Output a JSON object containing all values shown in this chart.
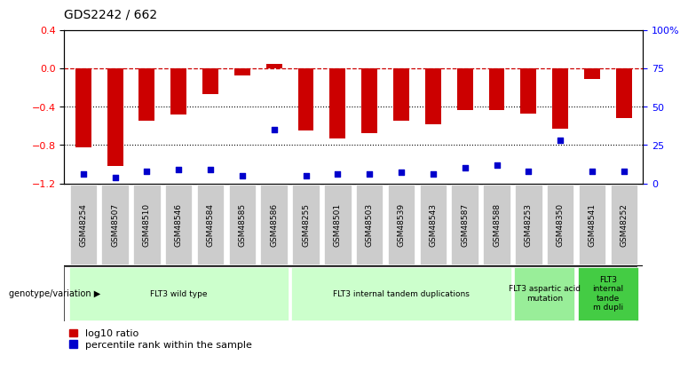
{
  "title": "GDS2242 / 662",
  "samples": [
    "GSM48254",
    "GSM48507",
    "GSM48510",
    "GSM48546",
    "GSM48584",
    "GSM48585",
    "GSM48586",
    "GSM48255",
    "GSM48501",
    "GSM48503",
    "GSM48539",
    "GSM48543",
    "GSM48587",
    "GSM48588",
    "GSM48253",
    "GSM48350",
    "GSM48541",
    "GSM48252"
  ],
  "log10_ratio": [
    -0.82,
    -1.02,
    -0.55,
    -0.48,
    -0.27,
    -0.07,
    0.05,
    -0.65,
    -0.73,
    -0.68,
    -0.55,
    -0.58,
    -0.43,
    -0.43,
    -0.47,
    -0.63,
    -0.11,
    -0.52
  ],
  "percentile_rank": [
    6,
    4,
    8,
    9,
    9,
    5,
    35,
    5,
    6,
    6,
    7,
    6,
    10,
    12,
    8,
    28,
    8,
    8
  ],
  "groups": [
    {
      "label": "FLT3 wild type",
      "start": 0,
      "end": 6,
      "color": "#ccffcc"
    },
    {
      "label": "FLT3 internal tandem duplications",
      "start": 7,
      "end": 13,
      "color": "#ccffcc"
    },
    {
      "label": "FLT3 aspartic acid\nmutation",
      "start": 14,
      "end": 15,
      "color": "#99ee99"
    },
    {
      "label": "FLT3\ninternal\ntande\nm dupli",
      "start": 16,
      "end": 17,
      "color": "#44cc44"
    }
  ],
  "bar_color": "#cc0000",
  "dot_color": "#0000cc",
  "ylim_left": [
    -1.2,
    0.4
  ],
  "ylim_right": [
    0,
    100
  ],
  "right_ticks": [
    0,
    25,
    50,
    75,
    100
  ],
  "right_tick_labels": [
    "0",
    "25",
    "50",
    "75",
    "100%"
  ],
  "left_ticks": [
    -1.2,
    -0.8,
    -0.4,
    0.0,
    0.4
  ],
  "dotted_lines": [
    -0.4,
    -0.8
  ],
  "dashed_line": 0.0
}
